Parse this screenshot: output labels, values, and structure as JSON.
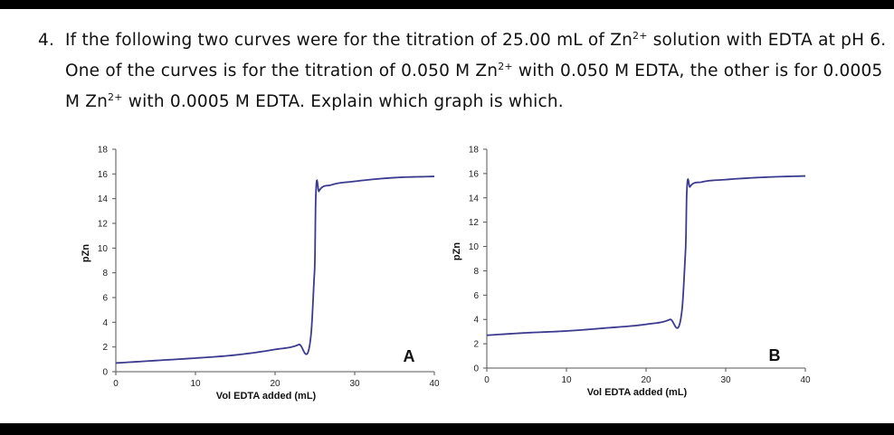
{
  "question": {
    "number": "4.",
    "line1_a": "If the following two curves were for the titration of 25.00 mL of Zn",
    "line1_sup": "2+",
    "line1_b": " solution with EDTA at pH 6.",
    "line2_a": "One of the curves is for the titration of 0.050 M Zn",
    "line2_sup": "2+",
    "line2_b": " with 0.050 M EDTA, the other is for 0.0005",
    "line3_a": "M Zn",
    "line3_sup": "2+",
    "line3_b": " with 0.0005 M EDTA. Explain which graph is which."
  },
  "colors": {
    "curve": "#3b3b8f",
    "axis": "#555555",
    "text": "#111111"
  },
  "chart_data": [
    {
      "type": "line",
      "panel_label": "A",
      "xlabel": "Vol EDTA added (mL)",
      "ylabel": "pZn",
      "xlim": [
        0,
        40
      ],
      "ylim": [
        0,
        18
      ],
      "xticks": [
        "0",
        "10",
        "20",
        "30",
        "40"
      ],
      "yticks": [
        "0",
        "2",
        "4",
        "6",
        "8",
        "10",
        "12",
        "14",
        "16",
        "18"
      ],
      "series": [
        {
          "x": [
            0,
            5,
            10,
            15,
            20,
            23,
            24.5,
            24.9,
            25.0,
            25.1,
            25.5,
            27,
            30,
            35,
            40
          ],
          "y": [
            0.7,
            0.9,
            1.1,
            1.35,
            1.8,
            2.2,
            2.9,
            7.5,
            9.0,
            13.8,
            14.6,
            15.1,
            15.4,
            15.7,
            15.8
          ]
        }
      ]
    },
    {
      "type": "line",
      "panel_label": "B",
      "xlabel": "Vol EDTA added (mL)",
      "ylabel": "pZn",
      "xlim": [
        0,
        40
      ],
      "ylim": [
        0,
        18
      ],
      "xticks": [
        "0",
        "10",
        "20",
        "30",
        "40"
      ],
      "yticks": [
        "0",
        "2",
        "4",
        "6",
        "8",
        "10",
        "12",
        "14",
        "16",
        "18"
      ],
      "series": [
        {
          "x": [
            0,
            5,
            10,
            15,
            20,
            23,
            24.5,
            24.9,
            25.0,
            25.1,
            25.5,
            27,
            30,
            35,
            40
          ],
          "y": [
            2.7,
            2.9,
            3.05,
            3.3,
            3.6,
            4.0,
            4.7,
            9.0,
            10.5,
            14.2,
            14.9,
            15.3,
            15.5,
            15.7,
            15.8
          ]
        }
      ]
    }
  ]
}
